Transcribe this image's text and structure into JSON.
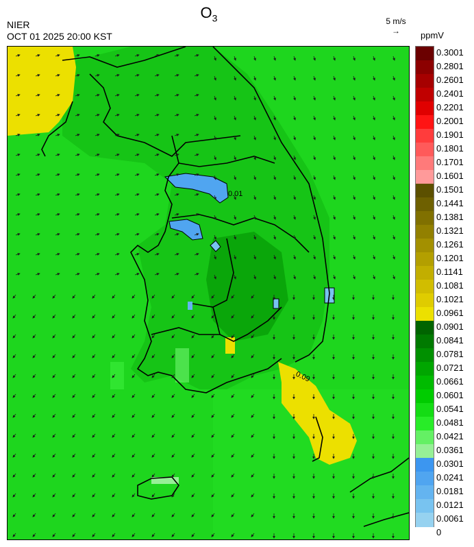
{
  "header": {
    "species": "O",
    "species_sub": "3",
    "agency": "NIER",
    "datetime": "OCT 01 2025 20:00 KST"
  },
  "wind_reference": {
    "label": "5 m/s",
    "arrow": "→"
  },
  "legend": {
    "unit": "ppmV",
    "bins": [
      {
        "label": "0.3001",
        "color": "#6b0000"
      },
      {
        "label": "0.2801",
        "color": "#8c0000"
      },
      {
        "label": "0.2601",
        "color": "#a60000"
      },
      {
        "label": "0.2401",
        "color": "#c00000"
      },
      {
        "label": "0.2201",
        "color": "#e00000"
      },
      {
        "label": "0.2001",
        "color": "#ff1414"
      },
      {
        "label": "0.1901",
        "color": "#ff3c3c"
      },
      {
        "label": "0.1801",
        "color": "#ff5a5a"
      },
      {
        "label": "0.1701",
        "color": "#ff7a7a"
      },
      {
        "label": "0.1601",
        "color": "#ff9a9a"
      },
      {
        "label": "0.1501",
        "color": "#5c5000"
      },
      {
        "label": "0.1441",
        "color": "#6e6000"
      },
      {
        "label": "0.1381",
        "color": "#807000"
      },
      {
        "label": "0.1321",
        "color": "#928000"
      },
      {
        "label": "0.1261",
        "color": "#a39000"
      },
      {
        "label": "0.1201",
        "color": "#b39f00"
      },
      {
        "label": "0.1141",
        "color": "#c2ae00"
      },
      {
        "label": "0.1081",
        "color": "#d1bd00"
      },
      {
        "label": "0.1021",
        "color": "#dfcc00"
      },
      {
        "label": "0.0961",
        "color": "#ece000"
      },
      {
        "label": "0.0901",
        "color": "#006400"
      },
      {
        "label": "0.0841",
        "color": "#007a00"
      },
      {
        "label": "0.0781",
        "color": "#009000"
      },
      {
        "label": "0.0721",
        "color": "#00a600"
      },
      {
        "label": "0.0661",
        "color": "#00bb00"
      },
      {
        "label": "0.0601",
        "color": "#00cc00"
      },
      {
        "label": "0.0541",
        "color": "#14dc14"
      },
      {
        "label": "0.0481",
        "color": "#28ec28"
      },
      {
        "label": "0.0421",
        "color": "#64f064"
      },
      {
        "label": "0.0361",
        "color": "#96f096"
      },
      {
        "label": "0.0301",
        "color": "#3c96f0"
      },
      {
        "label": "0.0241",
        "color": "#50a5f0"
      },
      {
        "label": "0.0181",
        "color": "#64b4f0"
      },
      {
        "label": "0.0121",
        "color": "#78c3f0"
      },
      {
        "label": "0.0061",
        "color": "#96d2f0"
      },
      {
        "label": "0",
        "color": "#ffffff"
      }
    ]
  },
  "contour_labels": [
    "0.09",
    "0.01"
  ]
}
